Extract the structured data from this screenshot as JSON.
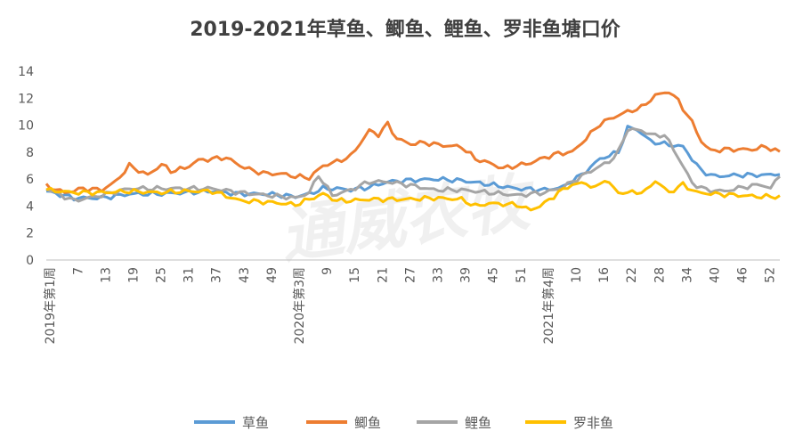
{
  "chart_data": {
    "type": "line",
    "title": "2019-2021年草鱼、鲫鱼、鲤鱼、罗非鱼塘口价",
    "watermark": "通威农牧",
    "ylim": [
      0,
      14
    ],
    "yticks": [
      0,
      2,
      4,
      6,
      8,
      10,
      12,
      14
    ],
    "grid": false,
    "legend_position": "bottom",
    "x_tick_labels": [
      "2019年第1周",
      "7",
      "13",
      "19",
      "25",
      "31",
      "37",
      "43",
      "49",
      "2020年第3周",
      "9",
      "15",
      "21",
      "27",
      "33",
      "39",
      "45",
      "51",
      "2021年第4周",
      "10",
      "16",
      "22",
      "28",
      "34",
      "40",
      "46",
      "52"
    ],
    "series": [
      {
        "name": "草鱼",
        "color": "#5B9BD5",
        "anchors": [
          [
            0,
            5.1
          ],
          [
            6,
            4.6
          ],
          [
            12,
            4.6
          ],
          [
            18,
            4.9
          ],
          [
            24,
            4.9
          ],
          [
            30,
            5.0
          ],
          [
            36,
            5.1
          ],
          [
            42,
            4.9
          ],
          [
            48,
            4.9
          ],
          [
            54,
            4.7
          ],
          [
            57,
            4.9
          ],
          [
            60,
            5.3
          ],
          [
            63,
            5.3
          ],
          [
            66,
            5.2
          ],
          [
            70,
            5.4
          ],
          [
            74,
            5.8
          ],
          [
            78,
            5.9
          ],
          [
            84,
            6.0
          ],
          [
            90,
            5.9
          ],
          [
            96,
            5.6
          ],
          [
            102,
            5.3
          ],
          [
            108,
            5.2
          ],
          [
            112,
            5.4
          ],
          [
            114,
            5.9
          ],
          [
            116,
            6.3
          ],
          [
            120,
            7.5
          ],
          [
            124,
            8.0
          ],
          [
            126,
            9.8
          ],
          [
            128,
            9.7
          ],
          [
            131,
            8.8
          ],
          [
            134,
            8.6
          ],
          [
            138,
            8.4
          ],
          [
            142,
            6.6
          ],
          [
            145,
            6.2
          ],
          [
            150,
            6.3
          ],
          [
            156,
            6.3
          ],
          [
            159,
            6.4
          ]
        ]
      },
      {
        "name": "鲫鱼",
        "color": "#ED7D31",
        "anchors": [
          [
            0,
            5.5
          ],
          [
            4,
            5.0
          ],
          [
            8,
            5.3
          ],
          [
            12,
            5.2
          ],
          [
            15,
            5.8
          ],
          [
            18,
            7.0
          ],
          [
            22,
            6.3
          ],
          [
            25,
            7.1
          ],
          [
            27,
            6.6
          ],
          [
            30,
            6.8
          ],
          [
            33,
            7.4
          ],
          [
            36,
            7.5
          ],
          [
            39,
            7.6
          ],
          [
            42,
            7.0
          ],
          [
            45,
            6.6
          ],
          [
            48,
            6.4
          ],
          [
            51,
            6.4
          ],
          [
            54,
            6.2
          ],
          [
            57,
            6.1
          ],
          [
            60,
            7.0
          ],
          [
            63,
            7.3
          ],
          [
            66,
            7.7
          ],
          [
            70,
            9.6
          ],
          [
            72,
            9.3
          ],
          [
            74,
            10.1
          ],
          [
            76,
            9.0
          ],
          [
            79,
            8.6
          ],
          [
            82,
            8.7
          ],
          [
            86,
            8.5
          ],
          [
            90,
            8.4
          ],
          [
            93,
            7.5
          ],
          [
            96,
            7.2
          ],
          [
            99,
            6.8
          ],
          [
            102,
            7.0
          ],
          [
            105,
            7.2
          ],
          [
            108,
            7.6
          ],
          [
            111,
            7.9
          ],
          [
            114,
            8.0
          ],
          [
            117,
            9.0
          ],
          [
            120,
            10.1
          ],
          [
            123,
            10.6
          ],
          [
            126,
            11.0
          ],
          [
            129,
            11.3
          ],
          [
            132,
            12.2
          ],
          [
            135,
            12.5
          ],
          [
            137,
            11.8
          ],
          [
            140,
            10.2
          ],
          [
            142,
            8.8
          ],
          [
            144,
            8.1
          ],
          [
            147,
            8.2
          ],
          [
            150,
            8.2
          ],
          [
            153,
            8.2
          ],
          [
            156,
            8.4
          ],
          [
            159,
            8.0
          ]
        ]
      },
      {
        "name": "鲤鱼",
        "color": "#A5A5A5",
        "anchors": [
          [
            0,
            5.3
          ],
          [
            6,
            4.4
          ],
          [
            12,
            4.8
          ],
          [
            18,
            5.3
          ],
          [
            24,
            5.3
          ],
          [
            30,
            5.3
          ],
          [
            36,
            5.3
          ],
          [
            42,
            5.0
          ],
          [
            48,
            4.8
          ],
          [
            54,
            4.6
          ],
          [
            57,
            5.0
          ],
          [
            59,
            6.3
          ],
          [
            62,
            4.8
          ],
          [
            66,
            5.2
          ],
          [
            70,
            5.8
          ],
          [
            74,
            5.8
          ],
          [
            78,
            5.6
          ],
          [
            84,
            5.2
          ],
          [
            90,
            5.2
          ],
          [
            96,
            5.0
          ],
          [
            102,
            4.8
          ],
          [
            108,
            5.0
          ],
          [
            112,
            5.4
          ],
          [
            114,
            5.8
          ],
          [
            118,
            6.6
          ],
          [
            122,
            7.3
          ],
          [
            124,
            8.0
          ],
          [
            126,
            9.7
          ],
          [
            129,
            9.6
          ],
          [
            132,
            9.2
          ],
          [
            134,
            9.3
          ],
          [
            137,
            7.6
          ],
          [
            140,
            5.7
          ],
          [
            143,
            5.2
          ],
          [
            147,
            5.1
          ],
          [
            151,
            5.4
          ],
          [
            155,
            5.6
          ],
          [
            157,
            5.3
          ],
          [
            159,
            6.3
          ]
        ]
      },
      {
        "name": "罗非鱼",
        "color": "#FFC000",
        "anchors": [
          [
            0,
            5.2
          ],
          [
            6,
            5.0
          ],
          [
            12,
            5.0
          ],
          [
            18,
            5.1
          ],
          [
            24,
            5.0
          ],
          [
            30,
            5.1
          ],
          [
            36,
            5.1
          ],
          [
            42,
            4.4
          ],
          [
            48,
            4.3
          ],
          [
            54,
            4.1
          ],
          [
            57,
            4.5
          ],
          [
            60,
            4.9
          ],
          [
            63,
            4.4
          ],
          [
            66,
            4.4
          ],
          [
            70,
            4.5
          ],
          [
            74,
            4.5
          ],
          [
            78,
            4.5
          ],
          [
            84,
            4.6
          ],
          [
            90,
            4.5
          ],
          [
            93,
            4.0
          ],
          [
            96,
            4.2
          ],
          [
            102,
            4.1
          ],
          [
            105,
            3.7
          ],
          [
            108,
            4.2
          ],
          [
            111,
            5.0
          ],
          [
            114,
            5.6
          ],
          [
            117,
            5.7
          ],
          [
            119,
            5.3
          ],
          [
            121,
            6.0
          ],
          [
            124,
            5.0
          ],
          [
            127,
            5.0
          ],
          [
            130,
            5.1
          ],
          [
            132,
            5.9
          ],
          [
            135,
            5.0
          ],
          [
            138,
            5.6
          ],
          [
            141,
            5.0
          ],
          [
            145,
            4.9
          ],
          [
            150,
            4.8
          ],
          [
            155,
            4.7
          ],
          [
            159,
            4.7
          ]
        ]
      }
    ]
  }
}
